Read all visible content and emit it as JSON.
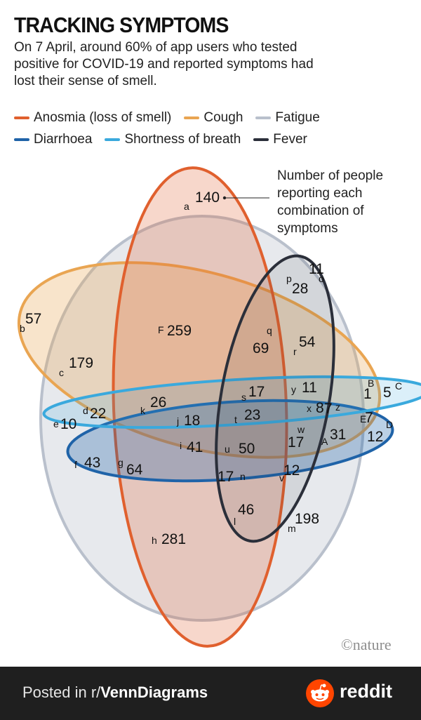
{
  "title": "TRACKING SYMPTOMS",
  "subtitle": "On 7 April, around 60% of app users who tested positive for COVID-19 and reported symptoms had lost their sense of smell.",
  "legend": [
    {
      "label": "Anosmia (loss of smell)",
      "color": "#e0602e"
    },
    {
      "label": "Cough",
      "color": "#e9a552"
    },
    {
      "label": "Fatigue",
      "color": "#b9c0cc"
    },
    {
      "label": "Diarrhoea",
      "color": "#1f63a8"
    },
    {
      "label": "Shortness of breath",
      "color": "#3aa9dd"
    },
    {
      "label": "Fever",
      "color": "#2b2f3a"
    }
  ],
  "annotation": "Number of people reporting each combination of symptoms",
  "regions": [
    {
      "letter": "a",
      "count": "140"
    },
    {
      "letter": "b",
      "count": "57"
    },
    {
      "letter": "c",
      "count": "179"
    },
    {
      "letter": "d",
      "count": "22"
    },
    {
      "letter": "e",
      "count": "10"
    },
    {
      "letter": "f",
      "count": "43"
    },
    {
      "letter": "g",
      "count": "64"
    },
    {
      "letter": "h",
      "count": "281"
    },
    {
      "letter": "i",
      "count": "41"
    },
    {
      "letter": "j",
      "count": "18"
    },
    {
      "letter": "k",
      "count": "26"
    },
    {
      "letter": "l",
      "count": "46"
    },
    {
      "letter": "m",
      "count": "198"
    },
    {
      "letter": "n",
      "count": "17"
    },
    {
      "letter": "o",
      "count": "11"
    },
    {
      "letter": "p",
      "count": "28"
    },
    {
      "letter": "q",
      "count": "69"
    },
    {
      "letter": "r",
      "count": "54"
    },
    {
      "letter": "s",
      "count": "17"
    },
    {
      "letter": "t",
      "count": "23"
    },
    {
      "letter": "u",
      "count": "50"
    },
    {
      "letter": "v",
      "count": "12"
    },
    {
      "letter": "w",
      "count": "17"
    },
    {
      "letter": "x",
      "count": "8"
    },
    {
      "letter": "y",
      "count": "11"
    },
    {
      "letter": "z",
      "count": "7"
    },
    {
      "letter": "A",
      "count": "31"
    },
    {
      "letter": "B",
      "count": "1"
    },
    {
      "letter": "C",
      "count": "5"
    },
    {
      "letter": "D",
      "count": "12"
    },
    {
      "letter": "E",
      "count": "7"
    },
    {
      "letter": "F",
      "count": "259"
    }
  ],
  "brand": "©nature",
  "footer": {
    "prefix": "Posted in r/",
    "community": "VennDiagrams",
    "logo_text": "reddit"
  }
}
